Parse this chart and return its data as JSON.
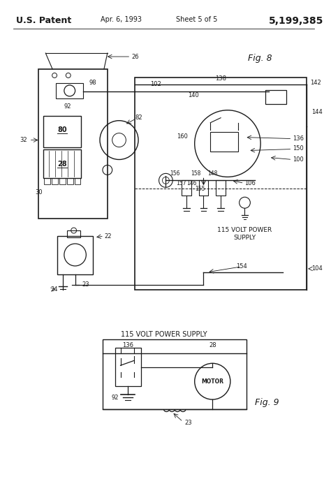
{
  "bg_color": "#ffffff",
  "line_color": "#1a1a1a",
  "header_left": "U.S. Patent",
  "header_center": "Apr. 6, 1993",
  "header_center2": "Sheet 5 of 5",
  "header_right": "5,199,385",
  "fig8_label": "Fig. 8",
  "fig9_label": "Fig. 9",
  "fig9_title": "115 VOLT POWER SUPPLY",
  "power_supply_label": "115 VOLT POWER\nSUPPLY"
}
